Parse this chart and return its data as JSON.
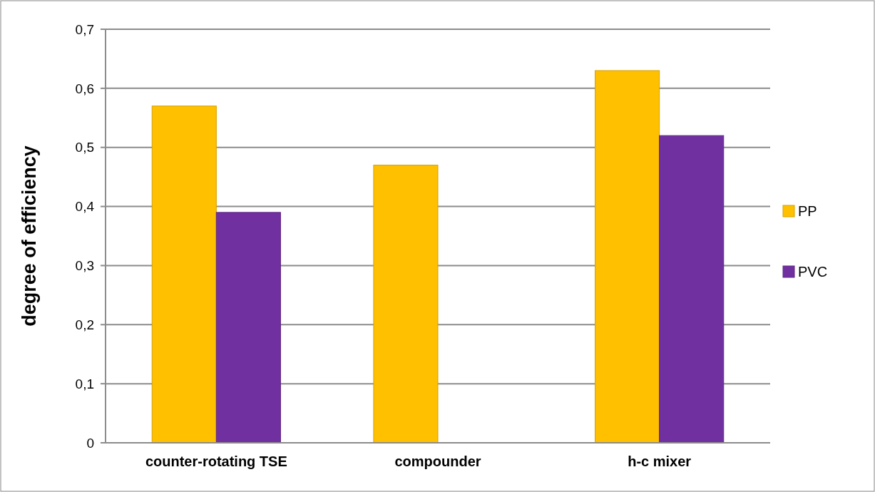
{
  "chart_data": {
    "type": "bar",
    "ylabel": "degree of efficiency",
    "categories": [
      "counter-rotating TSE",
      "compounder",
      "h-c mixer"
    ],
    "series": [
      {
        "name": "PP",
        "color": "#ffc000",
        "values": [
          0.57,
          0.47,
          0.63
        ]
      },
      {
        "name": "PVC",
        "color": "#7030a0",
        "values": [
          0.39,
          null,
          0.52
        ]
      }
    ],
    "ylim": [
      0,
      0.7
    ],
    "yticks": [
      {
        "value": 0,
        "label": "0"
      },
      {
        "value": 0.1,
        "label": "0,1"
      },
      {
        "value": 0.2,
        "label": "0,2"
      },
      {
        "value": 0.3,
        "label": "0,3"
      },
      {
        "value": 0.4,
        "label": "0,4"
      },
      {
        "value": 0.5,
        "label": "0,5"
      },
      {
        "value": 0.6,
        "label": "0,6"
      },
      {
        "value": 0.7,
        "label": "0,7"
      }
    ],
    "grid": "y",
    "legend": "right"
  }
}
